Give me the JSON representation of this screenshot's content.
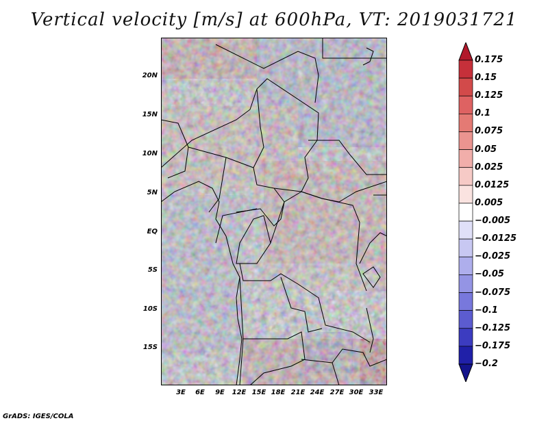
{
  "title": "Vertical velocity [m/s] at 600hPa, VT: 2019031721",
  "footer": "GrADS: IGES/COLA",
  "colors": {
    "land_border": "#000000",
    "frame": "#000000"
  },
  "chart_data": {
    "type": "heatmap",
    "variable": "Vertical velocity [m/s]",
    "level": "600hPa",
    "valid_time": "2019031721",
    "x_axis": {
      "ticks": [
        "3E",
        "6E",
        "9E",
        "12E",
        "15E",
        "18E",
        "21E",
        "24E",
        "27E",
        "30E",
        "33E"
      ],
      "range": [
        0,
        34
      ]
    },
    "y_axis": {
      "ticks": [
        "20N",
        "15N",
        "10N",
        "5N",
        "EQ",
        "5S",
        "10S",
        "15S"
      ],
      "range": [
        -20,
        24
      ]
    },
    "colorbar": {
      "labels": [
        "0.175",
        "0.15",
        "0.125",
        "0.1",
        "0.075",
        "0.05",
        "0.025",
        "0.0125",
        "0.005",
        "−0.005",
        "−0.0125",
        "−0.025",
        "−0.05",
        "−0.075",
        "−0.1",
        "−0.125",
        "−0.175",
        "−0.2"
      ],
      "colors": [
        "#b2182b",
        "#c6303a",
        "#d24a4a",
        "#de6262",
        "#e47a74",
        "#eb9490",
        "#f1aeaa",
        "#f6cac6",
        "#fae3e0",
        "#ffffff",
        "#e0e0f8",
        "#c8c8f2",
        "#aeaeec",
        "#9494e4",
        "#7878dc",
        "#5c5cd0",
        "#3c3cc0",
        "#2020a8",
        "#14148c"
      ]
    }
  }
}
